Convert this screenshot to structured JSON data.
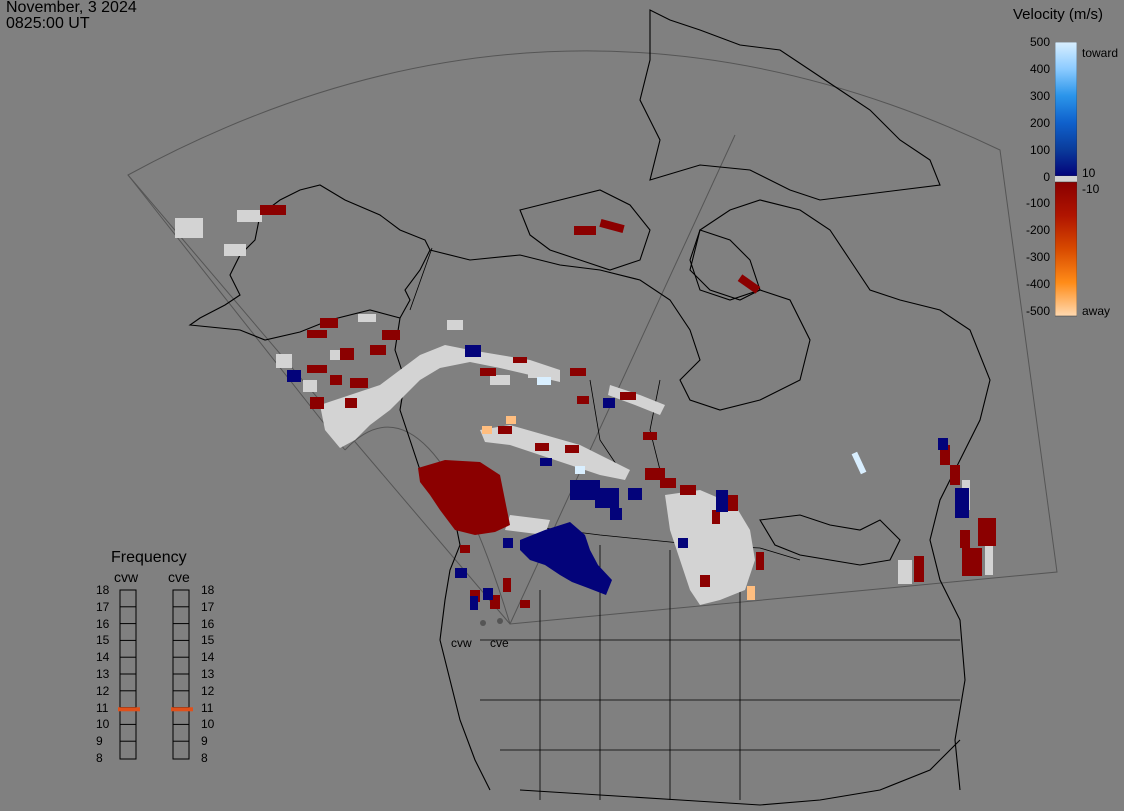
{
  "header": {
    "date": "November, 3 2024",
    "time": "0825:00 UT"
  },
  "legend": {
    "title": "Velocity (m/s)",
    "ticks": [
      "500",
      "400",
      "300",
      "200",
      "100",
      "0",
      "-100",
      "-200",
      "-300",
      "-400",
      "-500"
    ],
    "toward_label": "toward",
    "away_label": "away",
    "plus_threshold": "10",
    "minus_threshold": "-10",
    "colors": {
      "toward": [
        "#d9efff",
        "#a8dcff",
        "#4fb3f5",
        "#1e8ae6",
        "#0f61cc",
        "#0a3c9c",
        "#03037a"
      ],
      "away": [
        "#8a0000",
        "#a00a00",
        "#c02a00",
        "#d84a00",
        "#f07800",
        "#ff9d2a",
        "#ffd9b0"
      ],
      "ground": "#d3d3d3"
    }
  },
  "frequency": {
    "title": "Frequency",
    "radars": [
      "cvw",
      "cve"
    ],
    "scale": [
      "18",
      "17",
      "16",
      "15",
      "14",
      "13",
      "12",
      "11",
      "10",
      "9",
      "8"
    ],
    "cvw_mhz": 10.9,
    "cve_mhz": 10.9,
    "marker_color": "#e0501a"
  },
  "sites": {
    "cvw": "cvw",
    "cve": "cve"
  },
  "map": {
    "background": "#808080",
    "coast_color": "#000000",
    "fov_color": "#555555",
    "icons": [
      "radar-site-marker-icon"
    ]
  }
}
